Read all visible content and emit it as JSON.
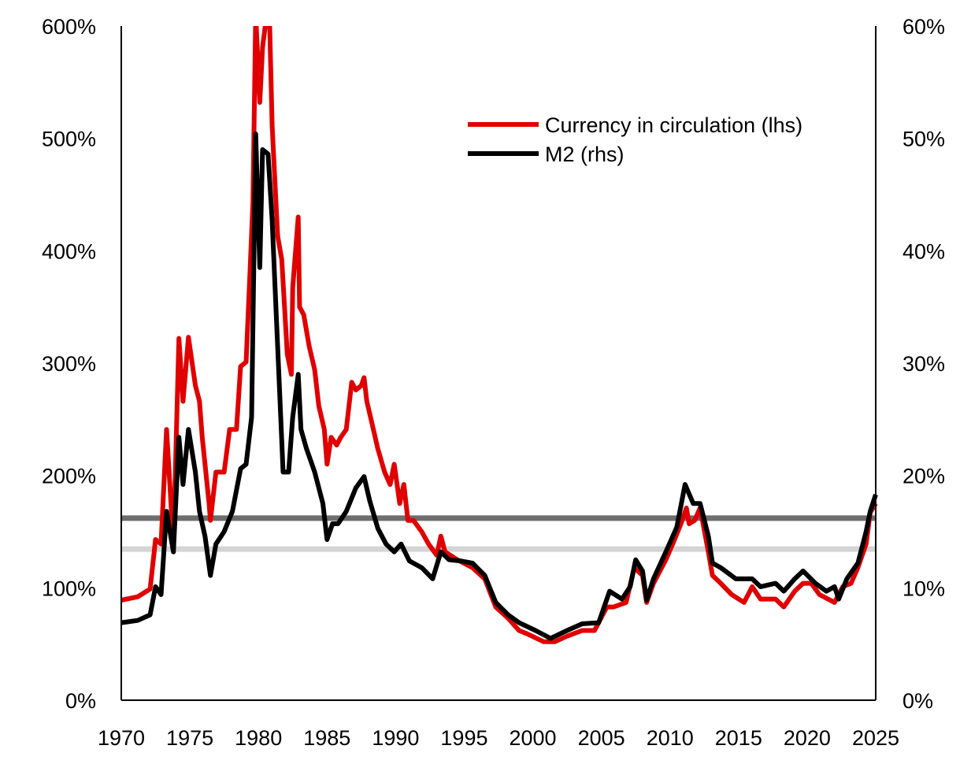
{
  "chart_data": {
    "type": "line",
    "title": "",
    "xlim": [
      1970,
      2025
    ],
    "x_ticks": [
      "1970",
      "1975",
      "1980",
      "1985",
      "1990",
      "1995",
      "2000",
      "2005",
      "2010",
      "2015",
      "2020",
      "2025"
    ],
    "y_left": {
      "range": [
        0,
        600
      ],
      "ticks": [
        "0%",
        "100%",
        "200%",
        "300%",
        "400%",
        "500%",
        "600%"
      ]
    },
    "y_right": {
      "range": [
        0,
        60
      ],
      "ticks": [
        "0%",
        "10%",
        "20%",
        "30%",
        "40%",
        "50%",
        "60%"
      ]
    },
    "grid": false,
    "legend_position": "top-right",
    "reference_lines": [
      {
        "axis": "left",
        "value": 162,
        "color": "#6e6e6e"
      },
      {
        "axis": "left",
        "value": 134.5,
        "color": "#d4d4d4"
      }
    ],
    "series": [
      {
        "name": "Currency in circulation (lhs)",
        "axis": "left",
        "color": "#e00000",
        "points": [
          [
            1970.0,
            89
          ],
          [
            1971.2,
            92
          ],
          [
            1972.1,
            99
          ],
          [
            1972.5,
            143
          ],
          [
            1972.9,
            139
          ],
          [
            1973.3,
            241
          ],
          [
            1973.8,
            139
          ],
          [
            1974.2,
            322
          ],
          [
            1974.5,
            266
          ],
          [
            1974.9,
            323
          ],
          [
            1975.4,
            280
          ],
          [
            1975.7,
            266
          ],
          [
            1975.9,
            234
          ],
          [
            1976.4,
            175
          ],
          [
            1976.5,
            160
          ],
          [
            1976.9,
            203
          ],
          [
            1977.5,
            203
          ],
          [
            1977.9,
            241
          ],
          [
            1978.4,
            241
          ],
          [
            1978.7,
            297
          ],
          [
            1979.1,
            301
          ],
          [
            1979.4,
            385
          ],
          [
            1979.6,
            444
          ],
          [
            1979.8,
            610
          ],
          [
            1980.1,
            532
          ],
          [
            1980.3,
            581
          ],
          [
            1980.6,
            610
          ],
          [
            1980.8,
            610
          ],
          [
            1981.0,
            511
          ],
          [
            1981.4,
            413
          ],
          [
            1981.7,
            392
          ],
          [
            1982.1,
            308
          ],
          [
            1982.4,
            290
          ],
          [
            1982.5,
            367
          ],
          [
            1982.9,
            430
          ],
          [
            1983.0,
            350
          ],
          [
            1983.3,
            343
          ],
          [
            1983.7,
            315
          ],
          [
            1984.1,
            294
          ],
          [
            1984.4,
            262
          ],
          [
            1984.8,
            241
          ],
          [
            1985.0,
            210
          ],
          [
            1985.3,
            234
          ],
          [
            1985.7,
            227
          ],
          [
            1986.0,
            234
          ],
          [
            1986.4,
            241
          ],
          [
            1986.8,
            283
          ],
          [
            1987.1,
            276
          ],
          [
            1987.5,
            280
          ],
          [
            1987.7,
            287
          ],
          [
            1987.9,
            266
          ],
          [
            1988.3,
            245
          ],
          [
            1988.7,
            224
          ],
          [
            1989.2,
            203
          ],
          [
            1989.6,
            192
          ],
          [
            1989.9,
            210
          ],
          [
            1990.3,
            175
          ],
          [
            1990.6,
            192
          ],
          [
            1990.9,
            160
          ],
          [
            1991.3,
            160
          ],
          [
            1991.9,
            150
          ],
          [
            1992.4,
            139
          ],
          [
            1993.0,
            129
          ],
          [
            1993.3,
            146
          ],
          [
            1993.6,
            132
          ],
          [
            1994.5,
            125
          ],
          [
            1995.6,
            118
          ],
          [
            1996.5,
            108
          ],
          [
            1997.3,
            83
          ],
          [
            1998.2,
            73
          ],
          [
            1999.0,
            62
          ],
          [
            1999.6,
            59
          ],
          [
            2000.8,
            52
          ],
          [
            2001.6,
            52
          ],
          [
            2002.5,
            57
          ],
          [
            2003.6,
            62
          ],
          [
            2004.5,
            62
          ],
          [
            2005.4,
            83
          ],
          [
            2005.9,
            83
          ],
          [
            2006.8,
            87
          ],
          [
            2007.4,
            118
          ],
          [
            2008.0,
            111
          ],
          [
            2008.3,
            87
          ],
          [
            2008.8,
            104
          ],
          [
            2009.7,
            125
          ],
          [
            2010.2,
            139
          ],
          [
            2010.8,
            157
          ],
          [
            2011.2,
            171
          ],
          [
            2011.4,
            157
          ],
          [
            2011.8,
            160
          ],
          [
            2012.2,
            171
          ],
          [
            2012.8,
            132
          ],
          [
            2013.1,
            111
          ],
          [
            2013.7,
            104
          ],
          [
            2014.5,
            94
          ],
          [
            2015.4,
            87
          ],
          [
            2016.0,
            101
          ],
          [
            2016.6,
            90
          ],
          [
            2017.7,
            90
          ],
          [
            2018.3,
            83
          ],
          [
            2019.1,
            97
          ],
          [
            2019.7,
            104
          ],
          [
            2020.3,
            104
          ],
          [
            2020.9,
            94
          ],
          [
            2022.0,
            87
          ],
          [
            2022.6,
            101
          ],
          [
            2023.2,
            104
          ],
          [
            2023.7,
            118
          ],
          [
            2024.3,
            139
          ],
          [
            2024.6,
            167
          ],
          [
            2025.0,
            175
          ]
        ]
      },
      {
        "name": "M2 (rhs)",
        "axis": "right",
        "color": "#000000",
        "points": [
          [
            1970.0,
            6.9
          ],
          [
            1971.2,
            7.1
          ],
          [
            1972.1,
            7.6
          ],
          [
            1972.5,
            10.1
          ],
          [
            1972.9,
            9.4
          ],
          [
            1973.3,
            16.8
          ],
          [
            1973.8,
            13.2
          ],
          [
            1974.2,
            23.4
          ],
          [
            1974.5,
            19.2
          ],
          [
            1974.9,
            24.1
          ],
          [
            1975.4,
            20.3
          ],
          [
            1975.7,
            16.8
          ],
          [
            1976.1,
            14.6
          ],
          [
            1976.5,
            11.1
          ],
          [
            1976.9,
            13.9
          ],
          [
            1977.5,
            15.0
          ],
          [
            1978.1,
            16.8
          ],
          [
            1978.7,
            20.6
          ],
          [
            1979.1,
            21.0
          ],
          [
            1979.5,
            25.2
          ],
          [
            1979.8,
            50.4
          ],
          [
            1980.1,
            38.5
          ],
          [
            1980.3,
            49.0
          ],
          [
            1980.7,
            48.6
          ],
          [
            1981.0,
            42.7
          ],
          [
            1981.3,
            34.3
          ],
          [
            1981.5,
            28.7
          ],
          [
            1981.8,
            20.3
          ],
          [
            1982.2,
            20.3
          ],
          [
            1982.5,
            25.2
          ],
          [
            1982.9,
            29.0
          ],
          [
            1983.1,
            24.1
          ],
          [
            1983.5,
            22.4
          ],
          [
            1984.1,
            20.3
          ],
          [
            1984.7,
            17.5
          ],
          [
            1985.0,
            14.3
          ],
          [
            1985.4,
            15.7
          ],
          [
            1985.8,
            15.7
          ],
          [
            1986.4,
            16.8
          ],
          [
            1987.1,
            18.9
          ],
          [
            1987.7,
            19.9
          ],
          [
            1988.1,
            17.8
          ],
          [
            1988.7,
            15.3
          ],
          [
            1989.3,
            13.9
          ],
          [
            1989.9,
            13.2
          ],
          [
            1990.4,
            13.9
          ],
          [
            1991.0,
            12.4
          ],
          [
            1991.9,
            11.8
          ],
          [
            1992.7,
            10.8
          ],
          [
            1993.3,
            13.2
          ],
          [
            1993.9,
            12.5
          ],
          [
            1994.7,
            12.4
          ],
          [
            1995.6,
            12.2
          ],
          [
            1996.5,
            11.1
          ],
          [
            1997.3,
            8.7
          ],
          [
            1998.2,
            7.6
          ],
          [
            1999.0,
            6.9
          ],
          [
            2000.2,
            6.2
          ],
          [
            2001.3,
            5.5
          ],
          [
            2002.5,
            6.2
          ],
          [
            2003.6,
            6.8
          ],
          [
            2004.8,
            6.9
          ],
          [
            2005.6,
            9.7
          ],
          [
            2006.5,
            9.0
          ],
          [
            2007.1,
            10.1
          ],
          [
            2007.5,
            12.5
          ],
          [
            2008.0,
            11.5
          ],
          [
            2008.3,
            8.9
          ],
          [
            2008.8,
            10.8
          ],
          [
            2009.7,
            13.2
          ],
          [
            2010.5,
            15.4
          ],
          [
            2011.1,
            19.2
          ],
          [
            2011.7,
            17.5
          ],
          [
            2012.2,
            17.5
          ],
          [
            2012.8,
            14.6
          ],
          [
            2013.1,
            12.2
          ],
          [
            2013.7,
            11.8
          ],
          [
            2014.8,
            10.8
          ],
          [
            2016.0,
            10.8
          ],
          [
            2016.6,
            10.1
          ],
          [
            2017.7,
            10.4
          ],
          [
            2018.3,
            9.7
          ],
          [
            2019.1,
            10.8
          ],
          [
            2019.7,
            11.5
          ],
          [
            2020.6,
            10.4
          ],
          [
            2021.4,
            9.7
          ],
          [
            2022.0,
            10.1
          ],
          [
            2022.3,
            9.0
          ],
          [
            2022.9,
            10.8
          ],
          [
            2023.7,
            12.2
          ],
          [
            2024.3,
            15.0
          ],
          [
            2024.6,
            16.8
          ],
          [
            2025.0,
            18.3
          ]
        ]
      }
    ]
  }
}
